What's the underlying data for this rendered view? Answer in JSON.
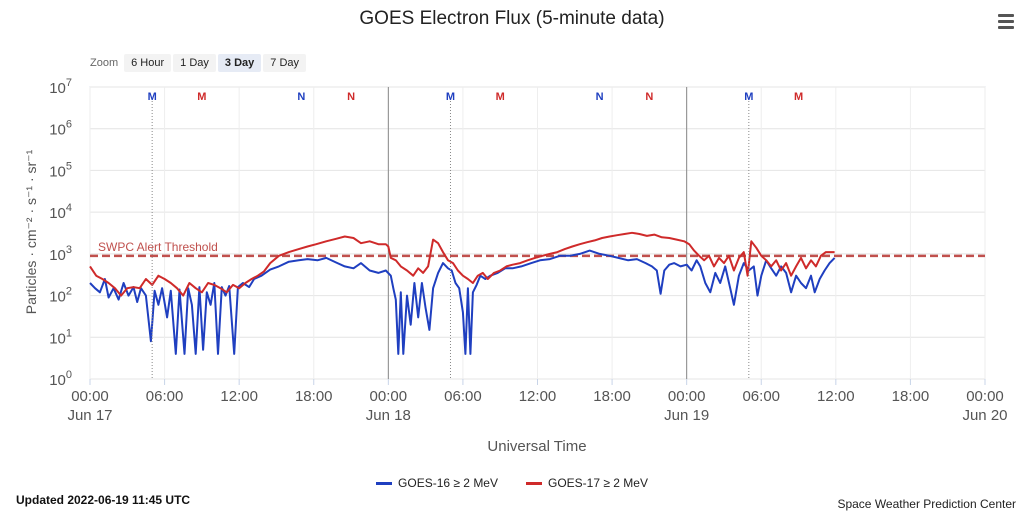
{
  "header": {
    "title": "GOES Electron Flux (5-minute data)",
    "menu_icon": "hamburger-icon"
  },
  "zoom": {
    "label": "Zoom",
    "buttons": [
      "6 Hour",
      "1 Day",
      "3 Day",
      "7 Day"
    ],
    "active": "3 Day"
  },
  "footer": {
    "updated": "Updated 2022-06-19 11:45 UTC",
    "credits": "Space Weather Prediction Center"
  },
  "colors": {
    "goes16": "#1f3fc0",
    "goes17": "#cf2a2a",
    "threshold": "#c0504d"
  },
  "chart_data": {
    "type": "line",
    "title": "GOES Electron Flux (5-minute data)",
    "xlabel": "Universal Time",
    "ylabel": "Particles · cm⁻² · s⁻¹ · sr⁻¹",
    "yscale": "log",
    "ylim": [
      1,
      10000000
    ],
    "y_ticks": [
      {
        "value": 1,
        "base": "10",
        "exp": "0"
      },
      {
        "value": 10,
        "base": "10",
        "exp": "1"
      },
      {
        "value": 100,
        "base": "10",
        "exp": "2"
      },
      {
        "value": 1000,
        "base": "10",
        "exp": "3"
      },
      {
        "value": 10000,
        "base": "10",
        "exp": "4"
      },
      {
        "value": 100000,
        "base": "10",
        "exp": "5"
      },
      {
        "value": 1000000,
        "base": "10",
        "exp": "6"
      },
      {
        "value": 10000000,
        "base": "10",
        "exp": "7"
      }
    ],
    "xlim": [
      0,
      72
    ],
    "x_ticks": [
      {
        "hour": 0,
        "label": "00:00",
        "date": "Jun 17"
      },
      {
        "hour": 6,
        "label": "06:00",
        "date": ""
      },
      {
        "hour": 12,
        "label": "12:00",
        "date": ""
      },
      {
        "hour": 18,
        "label": "18:00",
        "date": ""
      },
      {
        "hour": 24,
        "label": "00:00",
        "date": "Jun 18"
      },
      {
        "hour": 30,
        "label": "06:00",
        "date": ""
      },
      {
        "hour": 36,
        "label": "12:00",
        "date": ""
      },
      {
        "hour": 42,
        "label": "18:00",
        "date": ""
      },
      {
        "hour": 48,
        "label": "00:00",
        "date": "Jun 19"
      },
      {
        "hour": 54,
        "label": "06:00",
        "date": ""
      },
      {
        "hour": 60,
        "label": "12:00",
        "date": ""
      },
      {
        "hour": 66,
        "label": "18:00",
        "date": ""
      },
      {
        "hour": 72,
        "label": "00:00",
        "date": "Jun 20"
      }
    ],
    "day_boundaries": [
      24,
      48
    ],
    "threshold": {
      "value": 1000,
      "label": "SWPC Alert Threshold"
    },
    "markers": [
      {
        "hour": 5,
        "label": "M",
        "series": "GOES-16",
        "line": true
      },
      {
        "hour": 9,
        "label": "M",
        "series": "GOES-17",
        "line": false
      },
      {
        "hour": 17,
        "label": "N",
        "series": "GOES-16",
        "line": false
      },
      {
        "hour": 21,
        "label": "N",
        "series": "GOES-17",
        "line": false
      },
      {
        "hour": 29,
        "label": "M",
        "series": "GOES-16",
        "line": true
      },
      {
        "hour": 33,
        "label": "M",
        "series": "GOES-17",
        "line": false
      },
      {
        "hour": 41,
        "label": "N",
        "series": "GOES-16",
        "line": false
      },
      {
        "hour": 45,
        "label": "N",
        "series": "GOES-17",
        "line": false
      },
      {
        "hour": 53,
        "label": "M",
        "series": "GOES-16",
        "line": true
      },
      {
        "hour": 57,
        "label": "M",
        "series": "GOES-17",
        "line": false
      }
    ],
    "series": [
      {
        "name": "GOES-16 ≥ 2 MeV",
        "color": "#1f3fc0",
        "points": [
          [
            0.0,
            200
          ],
          [
            0.4,
            150
          ],
          [
            0.8,
            120
          ],
          [
            1.2,
            250
          ],
          [
            1.5,
            90
          ],
          [
            1.9,
            150
          ],
          [
            2.3,
            80
          ],
          [
            2.7,
            200
          ],
          [
            3.1,
            100
          ],
          [
            3.5,
            160
          ],
          [
            3.8,
            70
          ],
          [
            4.1,
            150
          ],
          [
            4.5,
            100
          ],
          [
            4.9,
            8
          ],
          [
            5.2,
            130
          ],
          [
            5.5,
            60
          ],
          [
            5.8,
            150
          ],
          [
            6.2,
            30
          ],
          [
            6.5,
            130
          ],
          [
            6.9,
            4
          ],
          [
            7.2,
            140
          ],
          [
            7.6,
            4
          ],
          [
            7.9,
            150
          ],
          [
            8.2,
            60
          ],
          [
            8.5,
            4
          ],
          [
            8.8,
            160
          ],
          [
            9.1,
            5
          ],
          [
            9.4,
            120
          ],
          [
            9.7,
            60
          ],
          [
            10.0,
            200
          ],
          [
            10.3,
            4
          ],
          [
            10.6,
            160
          ],
          [
            10.9,
            100
          ],
          [
            11.2,
            170
          ],
          [
            11.6,
            4
          ],
          [
            11.9,
            160
          ],
          [
            12.3,
            200
          ],
          [
            12.8,
            160
          ],
          [
            13.2,
            250
          ],
          [
            13.8,
            300
          ],
          [
            14.5,
            420
          ],
          [
            15.2,
            500
          ],
          [
            16.0,
            650
          ],
          [
            16.8,
            700
          ],
          [
            17.5,
            750
          ],
          [
            18.3,
            700
          ],
          [
            19.0,
            800
          ],
          [
            19.8,
            620
          ],
          [
            20.5,
            500
          ],
          [
            21.2,
            450
          ],
          [
            21.8,
            600
          ],
          [
            22.5,
            400
          ],
          [
            23.2,
            350
          ],
          [
            23.8,
            400
          ],
          [
            24.2,
            300
          ],
          [
            24.4,
            150
          ],
          [
            24.6,
            80
          ],
          [
            24.8,
            4
          ],
          [
            25.0,
            120
          ],
          [
            25.2,
            4
          ],
          [
            25.5,
            100
          ],
          [
            25.8,
            20
          ],
          [
            26.1,
            200
          ],
          [
            26.4,
            30
          ],
          [
            26.7,
            200
          ],
          [
            27.0,
            50
          ],
          [
            27.3,
            15
          ],
          [
            27.6,
            150
          ],
          [
            28.0,
            350
          ],
          [
            28.4,
            600
          ],
          [
            28.8,
            450
          ],
          [
            29.1,
            400
          ],
          [
            29.4,
            200
          ],
          [
            29.7,
            150
          ],
          [
            30.0,
            40
          ],
          [
            30.2,
            4
          ],
          [
            30.4,
            150
          ],
          [
            30.6,
            4
          ],
          [
            30.8,
            120
          ],
          [
            31.1,
            180
          ],
          [
            31.4,
            300
          ],
          [
            31.8,
            250
          ],
          [
            32.2,
            300
          ],
          [
            32.8,
            350
          ],
          [
            33.4,
            450
          ],
          [
            34.0,
            450
          ],
          [
            34.7,
            500
          ],
          [
            35.5,
            600
          ],
          [
            36.2,
            700
          ],
          [
            37.0,
            750
          ],
          [
            37.8,
            900
          ],
          [
            38.6,
            900
          ],
          [
            39.4,
            1000
          ],
          [
            40.2,
            1200
          ],
          [
            41.0,
            1000
          ],
          [
            41.8,
            900
          ],
          [
            42.5,
            800
          ],
          [
            43.3,
            700
          ],
          [
            44.0,
            750
          ],
          [
            44.7,
            600
          ],
          [
            45.2,
            500
          ],
          [
            45.6,
            400
          ],
          [
            45.9,
            110
          ],
          [
            46.2,
            400
          ],
          [
            46.6,
            550
          ],
          [
            47.0,
            600
          ],
          [
            47.5,
            500
          ],
          [
            48.0,
            550
          ],
          [
            48.4,
            400
          ],
          [
            48.8,
            700
          ],
          [
            49.1,
            500
          ],
          [
            49.5,
            200
          ],
          [
            49.9,
            120
          ],
          [
            50.3,
            350
          ],
          [
            50.7,
            200
          ],
          [
            51.1,
            500
          ],
          [
            51.5,
            150
          ],
          [
            51.8,
            60
          ],
          [
            52.2,
            300
          ],
          [
            52.6,
            600
          ],
          [
            53.0,
            400
          ],
          [
            53.4,
            500
          ],
          [
            53.7,
            100
          ],
          [
            54.0,
            300
          ],
          [
            54.4,
            700
          ],
          [
            54.8,
            450
          ],
          [
            55.2,
            300
          ],
          [
            55.6,
            500
          ],
          [
            56.0,
            350
          ],
          [
            56.4,
            120
          ],
          [
            56.8,
            300
          ],
          [
            57.2,
            200
          ],
          [
            57.6,
            150
          ],
          [
            58.0,
            300
          ],
          [
            58.3,
            120
          ],
          [
            58.7,
            250
          ],
          [
            59.1,
            400
          ],
          [
            59.5,
            600
          ],
          [
            59.9,
            800
          ]
        ]
      },
      {
        "name": "GOES-17 ≥ 2 MeV",
        "color": "#cf2a2a",
        "points": [
          [
            0.0,
            500
          ],
          [
            0.5,
            300
          ],
          [
            1.0,
            250
          ],
          [
            1.5,
            200
          ],
          [
            2.0,
            150
          ],
          [
            2.5,
            100
          ],
          [
            3.0,
            150
          ],
          [
            3.5,
            160
          ],
          [
            4.0,
            150
          ],
          [
            4.5,
            250
          ],
          [
            5.0,
            180
          ],
          [
            5.5,
            300
          ],
          [
            6.0,
            250
          ],
          [
            6.5,
            200
          ],
          [
            7.0,
            150
          ],
          [
            7.5,
            100
          ],
          [
            8.0,
            200
          ],
          [
            8.5,
            150
          ],
          [
            9.0,
            120
          ],
          [
            9.5,
            200
          ],
          [
            10.0,
            180
          ],
          [
            10.5,
            150
          ],
          [
            11.0,
            120
          ],
          [
            11.5,
            180
          ],
          [
            12.0,
            150
          ],
          [
            12.5,
            200
          ],
          [
            13.0,
            250
          ],
          [
            13.5,
            300
          ],
          [
            14.0,
            380
          ],
          [
            14.5,
            600
          ],
          [
            15.2,
            900
          ],
          [
            16.0,
            1100
          ],
          [
            16.8,
            1300
          ],
          [
            17.5,
            1500
          ],
          [
            18.2,
            1700
          ],
          [
            19.0,
            2000
          ],
          [
            19.8,
            2300
          ],
          [
            20.5,
            2600
          ],
          [
            21.2,
            2400
          ],
          [
            21.8,
            1800
          ],
          [
            22.5,
            2000
          ],
          [
            23.2,
            1700
          ],
          [
            23.8,
            1700
          ],
          [
            24.0,
            1500
          ],
          [
            24.2,
            800
          ],
          [
            24.6,
            700
          ],
          [
            25.0,
            500
          ],
          [
            25.5,
            400
          ],
          [
            26.0,
            300
          ],
          [
            26.4,
            450
          ],
          [
            26.8,
            350
          ],
          [
            27.2,
            500
          ],
          [
            27.6,
            2200
          ],
          [
            28.0,
            1800
          ],
          [
            28.4,
            1100
          ],
          [
            28.8,
            700
          ],
          [
            29.2,
            600
          ],
          [
            29.6,
            400
          ],
          [
            30.0,
            300
          ],
          [
            30.4,
            250
          ],
          [
            30.8,
            200
          ],
          [
            31.2,
            300
          ],
          [
            31.6,
            350
          ],
          [
            32.0,
            250
          ],
          [
            32.5,
            350
          ],
          [
            33.0,
            400
          ],
          [
            33.5,
            500
          ],
          [
            34.0,
            550
          ],
          [
            34.6,
            600
          ],
          [
            35.2,
            700
          ],
          [
            35.8,
            800
          ],
          [
            36.4,
            900
          ],
          [
            37.0,
            1000
          ],
          [
            37.6,
            1100
          ],
          [
            38.2,
            1300
          ],
          [
            38.8,
            1500
          ],
          [
            39.4,
            1700
          ],
          [
            40.0,
            1900
          ],
          [
            40.6,
            2100
          ],
          [
            41.2,
            2400
          ],
          [
            41.8,
            2600
          ],
          [
            42.4,
            2800
          ],
          [
            43.0,
            3000
          ],
          [
            43.6,
            3200
          ],
          [
            44.2,
            3000
          ],
          [
            44.8,
            2700
          ],
          [
            45.4,
            2900
          ],
          [
            46.0,
            2500
          ],
          [
            46.6,
            2400
          ],
          [
            47.2,
            2200
          ],
          [
            47.8,
            2000
          ],
          [
            48.2,
            1700
          ],
          [
            48.6,
            1200
          ],
          [
            49.0,
            900
          ],
          [
            49.4,
            700
          ],
          [
            49.8,
            900
          ],
          [
            50.2,
            500
          ],
          [
            50.6,
            800
          ],
          [
            51.0,
            600
          ],
          [
            51.4,
            900
          ],
          [
            51.8,
            400
          ],
          [
            52.2,
            800
          ],
          [
            52.6,
            1100
          ],
          [
            52.9,
            300
          ],
          [
            53.2,
            2000
          ],
          [
            53.6,
            1400
          ],
          [
            54.0,
            900
          ],
          [
            54.4,
            700
          ],
          [
            54.8,
            500
          ],
          [
            55.2,
            700
          ],
          [
            55.6,
            400
          ],
          [
            56.0,
            600
          ],
          [
            56.4,
            300
          ],
          [
            56.8,
            500
          ],
          [
            57.2,
            800
          ],
          [
            57.6,
            450
          ],
          [
            58.0,
            700
          ],
          [
            58.4,
            500
          ],
          [
            58.8,
            900
          ],
          [
            59.2,
            1100
          ],
          [
            59.6,
            1100
          ],
          [
            59.9,
            1100
          ]
        ]
      }
    ]
  }
}
